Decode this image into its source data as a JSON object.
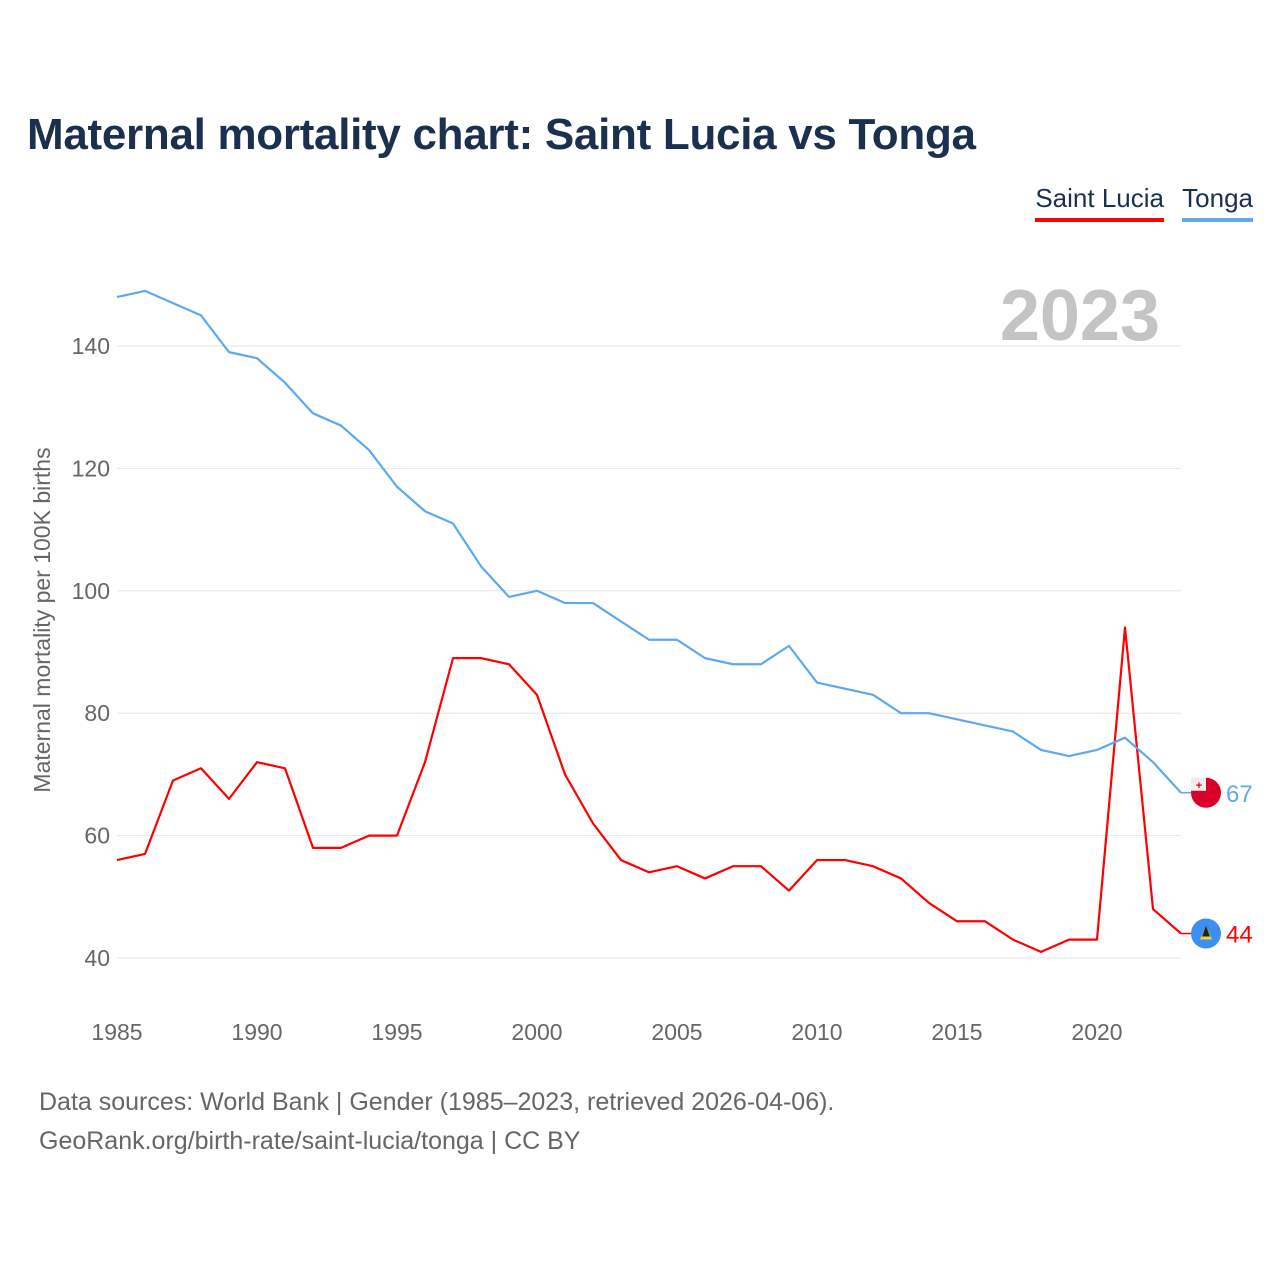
{
  "chart_data": {
    "type": "line",
    "title": "Maternal mortality chart: Saint Lucia vs Tonga",
    "ylabel": "Maternal mortality per 100K births",
    "xlabel": "",
    "year_label": "2023",
    "xlim": [
      1985,
      2023
    ],
    "ylim": [
      30,
      150
    ],
    "xticks": [
      1985,
      1990,
      1995,
      2000,
      2005,
      2010,
      2015,
      2020
    ],
    "yticks": [
      40,
      60,
      80,
      100,
      120,
      140
    ],
    "grid": true,
    "legend_position": "top-right",
    "x": [
      1985,
      1986,
      1987,
      1988,
      1989,
      1990,
      1991,
      1992,
      1993,
      1994,
      1995,
      1996,
      1997,
      1998,
      1999,
      2000,
      2001,
      2002,
      2003,
      2004,
      2005,
      2006,
      2007,
      2008,
      2009,
      2010,
      2011,
      2012,
      2013,
      2014,
      2015,
      2016,
      2017,
      2018,
      2019,
      2020,
      2021,
      2022,
      2023
    ],
    "series": [
      {
        "name": "Saint Lucia",
        "color": "#ff0000",
        "end_label": "44",
        "values": [
          56,
          57,
          69,
          71,
          66,
          72,
          71,
          58,
          58,
          60,
          60,
          72,
          89,
          89,
          88,
          83,
          70,
          62,
          56,
          54,
          55,
          53,
          55,
          55,
          51,
          56,
          56,
          55,
          53,
          49,
          46,
          46,
          43,
          41,
          43,
          43,
          94,
          48,
          44
        ]
      },
      {
        "name": "Tonga",
        "color": "#5ea8f0",
        "end_label": "67",
        "values": [
          148,
          149,
          147,
          145,
          139,
          138,
          134,
          129,
          127,
          123,
          117,
          113,
          111,
          104,
          99,
          100,
          98,
          98,
          95,
          92,
          92,
          89,
          88,
          88,
          91,
          85,
          84,
          83,
          80,
          80,
          79,
          78,
          77,
          74,
          73,
          74,
          76,
          72,
          67
        ]
      }
    ]
  },
  "footer": {
    "line1": "Data sources: World Bank | Gender (1985–2023, retrieved 2026-04-06).",
    "line2": "GeoRank.org/birth-rate/saint-lucia/tonga | CC BY"
  }
}
